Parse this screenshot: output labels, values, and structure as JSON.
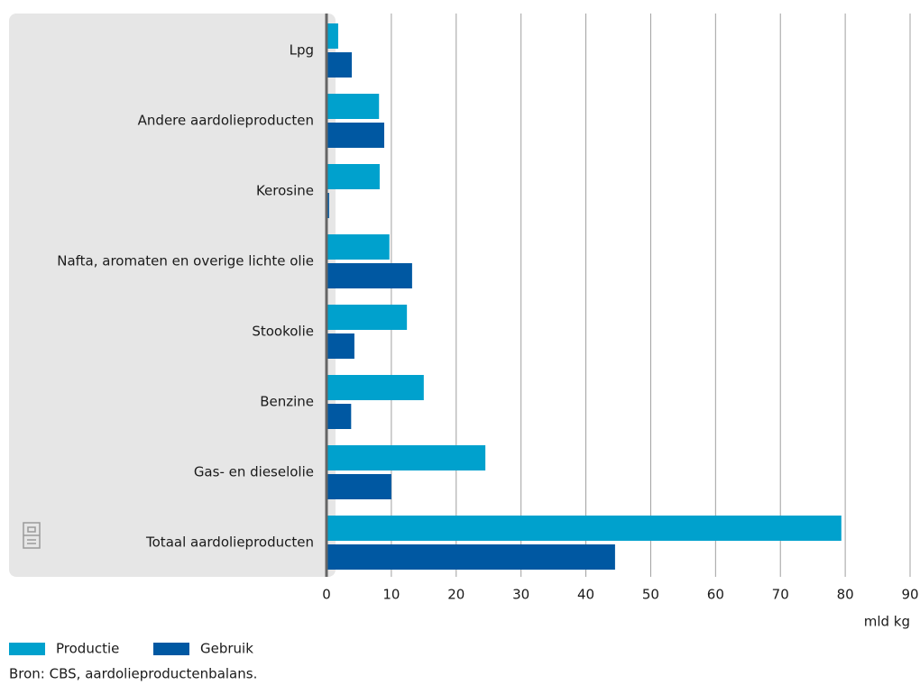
{
  "chart_data": {
    "type": "bar",
    "orientation": "horizontal",
    "categories": [
      "Lpg",
      "Andere aardolieproducten",
      "Kerosine",
      "Nafta, aromaten en overige lichte olie",
      "Stookolie",
      "Benzine",
      "Gas- en dieselolie",
      "Totaal aardolieproducten"
    ],
    "series": [
      {
        "name": "Productie",
        "color": "#00a1cd",
        "values": [
          1.8,
          8.1,
          8.2,
          9.7,
          12.4,
          15.0,
          24.5,
          79.4
        ]
      },
      {
        "name": "Gebruik",
        "color": "#0058a2",
        "values": [
          3.9,
          8.9,
          0.4,
          13.2,
          4.3,
          3.8,
          10.0,
          44.5
        ]
      }
    ],
    "xlim": [
      0,
      90
    ],
    "xticks": [
      0,
      10,
      20,
      30,
      40,
      50,
      60,
      70,
      80,
      90
    ],
    "x_label": "mld kg",
    "grid": true,
    "source": "Bron: CBS, aardolieproductenbalans."
  }
}
